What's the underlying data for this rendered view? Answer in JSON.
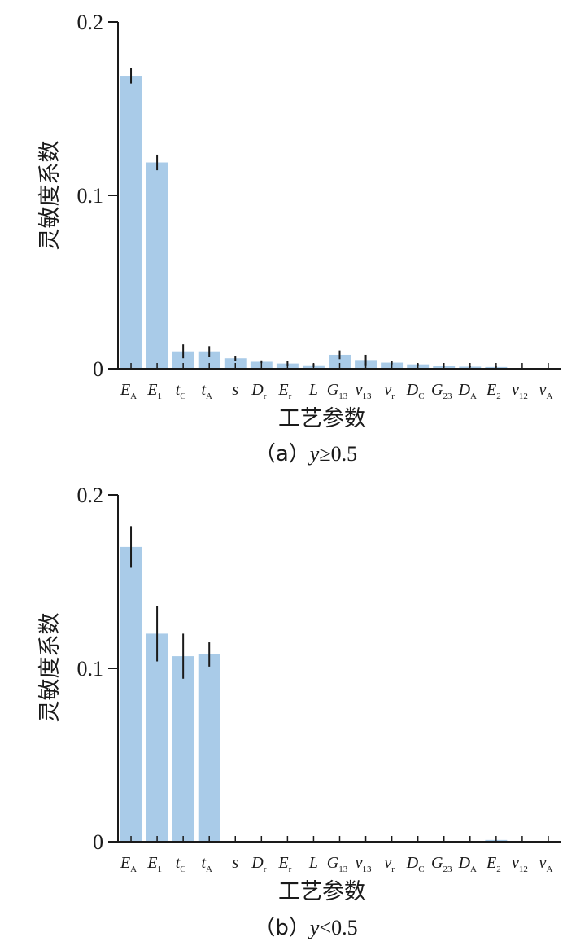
{
  "colors": {
    "bar": "#a9cbe8",
    "error": "#1a1a1a",
    "axis": "#1a1a1a"
  },
  "chart_data": [
    {
      "type": "bar",
      "caption": {
        "prefix": "（a）",
        "var": "y",
        "op": "≥",
        "num": "0.5"
      },
      "xlabel": "工艺参数",
      "ylabel": "灵敏度系数",
      "ylim": [
        0,
        0.2
      ],
      "yticks": [
        "0",
        "0.1",
        "0.2"
      ],
      "grid": false,
      "categories": [
        {
          "main": "E",
          "sub": "A"
        },
        {
          "main": "E",
          "sub": "1"
        },
        {
          "main": "t",
          "sub": "C"
        },
        {
          "main": "t",
          "sub": "A"
        },
        {
          "main": "s",
          "sub": ""
        },
        {
          "main": "D",
          "sub": "r"
        },
        {
          "main": "E",
          "sub": "r"
        },
        {
          "main": "L",
          "sub": ""
        },
        {
          "main": "G",
          "sub": "13"
        },
        {
          "main": "v",
          "sub": "13"
        },
        {
          "main": "v",
          "sub": "r"
        },
        {
          "main": "D",
          "sub": "C"
        },
        {
          "main": "G",
          "sub": "23"
        },
        {
          "main": "D",
          "sub": "A"
        },
        {
          "main": "E",
          "sub": "2"
        },
        {
          "main": "v",
          "sub": "12"
        },
        {
          "main": "v",
          "sub": "A"
        }
      ],
      "values": [
        0.169,
        0.119,
        0.01,
        0.01,
        0.006,
        0.004,
        0.003,
        0.002,
        0.008,
        0.005,
        0.0035,
        0.0025,
        0.0015,
        0.0012,
        0.001,
        0,
        0
      ],
      "errors": [
        0.0045,
        0.0045,
        0.004,
        0.003,
        0.0015,
        0.0008,
        0.0015,
        0.001,
        0.0025,
        0.003,
        0.001,
        0.0005,
        0.0003,
        0.0003,
        0.0003,
        0,
        0
      ]
    },
    {
      "type": "bar",
      "caption": {
        "prefix": "（b）",
        "var": "y",
        "op": "<",
        "num": "0.5"
      },
      "xlabel": "工艺参数",
      "ylabel": "灵敏度系数",
      "ylim": [
        0,
        0.2
      ],
      "yticks": [
        "0",
        "0.1",
        "0.2"
      ],
      "grid": false,
      "categories": [
        {
          "main": "E",
          "sub": "A"
        },
        {
          "main": "E",
          "sub": "1"
        },
        {
          "main": "t",
          "sub": "C"
        },
        {
          "main": "t",
          "sub": "A"
        },
        {
          "main": "s",
          "sub": ""
        },
        {
          "main": "D",
          "sub": "r"
        },
        {
          "main": "E",
          "sub": "r"
        },
        {
          "main": "L",
          "sub": ""
        },
        {
          "main": "G",
          "sub": "13"
        },
        {
          "main": "v",
          "sub": "13"
        },
        {
          "main": "v",
          "sub": "r"
        },
        {
          "main": "D",
          "sub": "C"
        },
        {
          "main": "G",
          "sub": "23"
        },
        {
          "main": "D",
          "sub": "A"
        },
        {
          "main": "E",
          "sub": "2"
        },
        {
          "main": "v",
          "sub": "12"
        },
        {
          "main": "v",
          "sub": "A"
        }
      ],
      "values": [
        0.17,
        0.12,
        0.107,
        0.108,
        0,
        0,
        0,
        0,
        0,
        0,
        0,
        0,
        0,
        0,
        0.001,
        0,
        0
      ],
      "errors": [
        0.012,
        0.016,
        0.013,
        0.007,
        0,
        0,
        0,
        0,
        0,
        0,
        0,
        0,
        0,
        0,
        0,
        0,
        0
      ]
    }
  ]
}
